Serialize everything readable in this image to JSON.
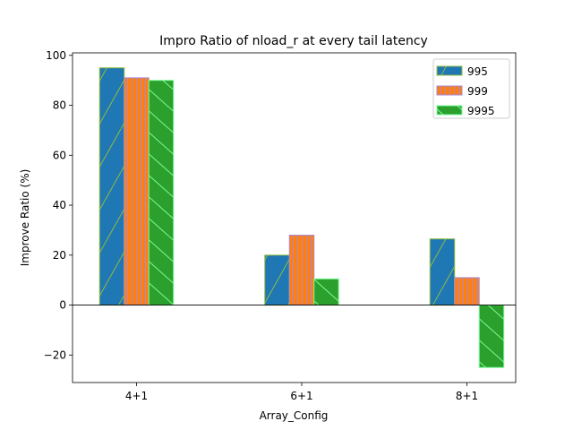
{
  "chart_data": {
    "type": "bar",
    "title": "Impro Ratio of nload_r at every tail latency",
    "xlabel": "Array_Config",
    "ylabel": "Improve Ratio (%)",
    "categories": [
      "4+1",
      "6+1",
      "8+1"
    ],
    "ylim": [
      -31,
      101
    ],
    "yticks": [
      -20,
      0,
      20,
      40,
      60,
      80,
      100
    ],
    "ytick_labels": [
      "−20",
      "0",
      "20",
      "40",
      "60",
      "80",
      "100"
    ],
    "legend_position": "top-right",
    "grid": false,
    "zero_line": true,
    "series": [
      {
        "name": "995",
        "values": [
          95,
          20,
          26.5
        ],
        "color": "#1f77b4",
        "edge": "#8fbc3f",
        "hatch": "forward-slash"
      },
      {
        "name": "999",
        "values": [
          91,
          28,
          11
        ],
        "color": "#ff7f0e",
        "edge": "#a98ad8",
        "hatch": "vertical"
      },
      {
        "name": "9995",
        "values": [
          90,
          10.5,
          -25
        ],
        "color": "#2ca02c",
        "edge": "#7cfc9c",
        "hatch": "back-slash"
      }
    ]
  }
}
